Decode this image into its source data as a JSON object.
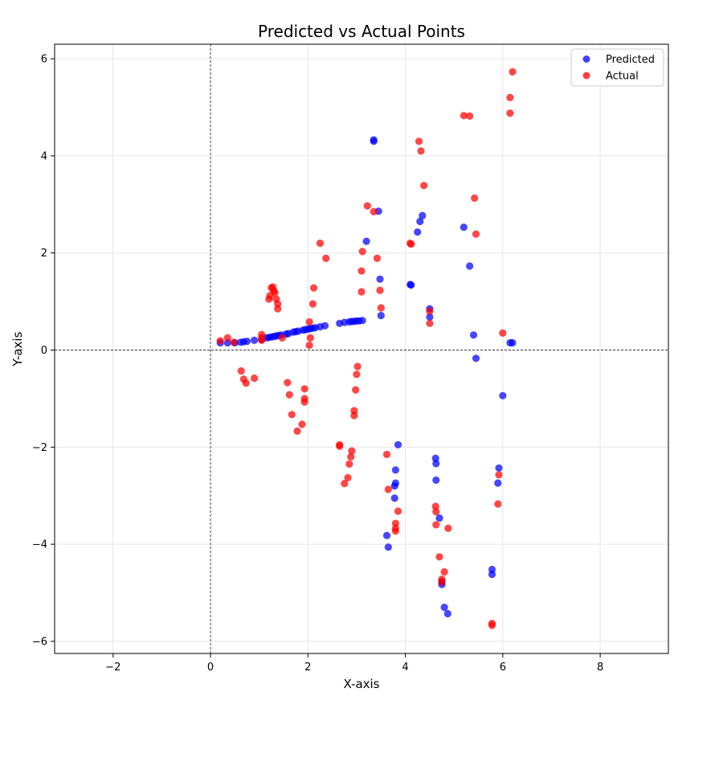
{
  "chart_data": {
    "type": "scatter",
    "title": "Predicted vs Actual Points",
    "xlabel": "X-axis",
    "ylabel": "Y-axis",
    "xlim": [
      -3.2,
      9.4
    ],
    "ylim": [
      -6.25,
      6.3
    ],
    "xticks": [
      -2,
      0,
      2,
      4,
      6,
      8
    ],
    "yticks": [
      -6,
      -4,
      -2,
      0,
      2,
      4,
      6
    ],
    "xtick_labels": [
      "−2",
      "0",
      "2",
      "4",
      "6",
      "8"
    ],
    "ytick_labels": [
      "−6",
      "−4",
      "−2",
      "0",
      "2",
      "4",
      "6"
    ],
    "grid": true,
    "reference_lines": {
      "x": 0,
      "y": 0,
      "style": "dashed"
    },
    "legend_position": "top-right",
    "series": [
      {
        "name": "Predicted",
        "color": "#0000ff",
        "points": [
          [
            0.2,
            0.15
          ],
          [
            0.35,
            0.15
          ],
          [
            0.5,
            0.15
          ],
          [
            0.62,
            0.16
          ],
          [
            0.68,
            0.17
          ],
          [
            0.75,
            0.18
          ],
          [
            0.9,
            0.2
          ],
          [
            1.05,
            0.22
          ],
          [
            1.15,
            0.25
          ],
          [
            1.2,
            0.26
          ],
          [
            1.25,
            0.27
          ],
          [
            1.3,
            0.28
          ],
          [
            1.35,
            0.29
          ],
          [
            1.4,
            0.3
          ],
          [
            1.45,
            0.31
          ],
          [
            1.55,
            0.33
          ],
          [
            1.6,
            0.34
          ],
          [
            1.7,
            0.37
          ],
          [
            1.75,
            0.38
          ],
          [
            1.8,
            0.39
          ],
          [
            1.9,
            0.41
          ],
          [
            1.95,
            0.42
          ],
          [
            2.0,
            0.43
          ],
          [
            2.05,
            0.44
          ],
          [
            2.1,
            0.45
          ],
          [
            2.15,
            0.46
          ],
          [
            2.25,
            0.48
          ],
          [
            2.35,
            0.5
          ],
          [
            2.65,
            0.55
          ],
          [
            2.75,
            0.57
          ],
          [
            2.85,
            0.58
          ],
          [
            2.9,
            0.59
          ],
          [
            2.95,
            0.59
          ],
          [
            3.0,
            0.6
          ],
          [
            3.05,
            0.6
          ],
          [
            3.12,
            0.61
          ],
          [
            3.2,
            2.24
          ],
          [
            3.35,
            4.3
          ],
          [
            3.35,
            4.33
          ],
          [
            3.45,
            2.86
          ],
          [
            3.48,
            1.46
          ],
          [
            3.5,
            0.71
          ],
          [
            4.1,
            1.35
          ],
          [
            4.12,
            1.34
          ],
          [
            4.25,
            2.43
          ],
          [
            4.3,
            2.65
          ],
          [
            4.35,
            2.77
          ],
          [
            4.5,
            0.85
          ],
          [
            4.5,
            0.68
          ],
          [
            5.2,
            2.53
          ],
          [
            5.32,
            1.73
          ],
          [
            5.4,
            0.31
          ],
          [
            5.45,
            -0.17
          ],
          [
            6.0,
            -0.94
          ],
          [
            6.15,
            0.15
          ],
          [
            6.2,
            0.15
          ],
          [
            3.85,
            -1.95
          ],
          [
            3.8,
            -2.47
          ],
          [
            3.8,
            -2.74
          ],
          [
            3.78,
            -2.8
          ],
          [
            3.78,
            -3.05
          ],
          [
            3.62,
            -3.82
          ],
          [
            3.65,
            -4.06
          ],
          [
            4.62,
            -2.23
          ],
          [
            4.63,
            -2.34
          ],
          [
            4.63,
            -2.68
          ],
          [
            4.7,
            -3.46
          ],
          [
            4.75,
            -4.77
          ],
          [
            4.75,
            -4.83
          ],
          [
            4.8,
            -5.3
          ],
          [
            4.87,
            -5.43
          ],
          [
            5.92,
            -2.43
          ],
          [
            5.9,
            -2.74
          ],
          [
            5.78,
            -4.52
          ],
          [
            5.78,
            -4.62
          ]
        ]
      },
      {
        "name": "Actual",
        "color": "#ff0000",
        "points": [
          [
            0.2,
            0.19
          ],
          [
            0.35,
            0.25
          ],
          [
            0.48,
            0.16
          ],
          [
            1.05,
            0.32
          ],
          [
            1.05,
            0.25
          ],
          [
            1.05,
            0.2
          ],
          [
            1.47,
            0.25
          ],
          [
            1.2,
            1.05
          ],
          [
            1.22,
            1.12
          ],
          [
            1.25,
            1.28
          ],
          [
            1.28,
            1.3
          ],
          [
            1.3,
            1.22
          ],
          [
            1.32,
            1.18
          ],
          [
            1.35,
            1.05
          ],
          [
            1.38,
            0.95
          ],
          [
            1.38,
            0.85
          ],
          [
            2.03,
            0.58
          ],
          [
            2.05,
            0.25
          ],
          [
            2.03,
            0.1
          ],
          [
            2.1,
            0.95
          ],
          [
            2.12,
            1.28
          ],
          [
            2.25,
            2.2
          ],
          [
            2.37,
            1.89
          ],
          [
            3.1,
            1.63
          ],
          [
            3.1,
            1.2
          ],
          [
            3.12,
            2.03
          ],
          [
            3.22,
            2.97
          ],
          [
            3.35,
            2.85
          ],
          [
            3.42,
            1.89
          ],
          [
            3.48,
            1.23
          ],
          [
            3.5,
            0.87
          ],
          [
            4.1,
            2.2
          ],
          [
            4.12,
            2.18
          ],
          [
            4.28,
            4.3
          ],
          [
            4.32,
            4.1
          ],
          [
            4.38,
            3.39
          ],
          [
            4.5,
            0.8
          ],
          [
            4.5,
            0.55
          ],
          [
            5.2,
            4.83
          ],
          [
            5.32,
            4.82
          ],
          [
            5.42,
            3.13
          ],
          [
            5.45,
            2.39
          ],
          [
            6.0,
            0.35
          ],
          [
            6.15,
            5.2
          ],
          [
            6.15,
            4.88
          ],
          [
            6.2,
            5.73
          ],
          [
            0.63,
            -0.43
          ],
          [
            0.68,
            -0.6
          ],
          [
            0.73,
            -0.68
          ],
          [
            0.9,
            -0.58
          ],
          [
            1.58,
            -0.67
          ],
          [
            1.62,
            -0.92
          ],
          [
            1.67,
            -1.33
          ],
          [
            1.78,
            -1.67
          ],
          [
            1.88,
            -1.53
          ],
          [
            1.93,
            -0.8
          ],
          [
            1.93,
            -1.0
          ],
          [
            1.93,
            -1.07
          ],
          [
            2.65,
            -1.95
          ],
          [
            2.65,
            -1.98
          ],
          [
            2.75,
            -2.75
          ],
          [
            2.82,
            -2.63
          ],
          [
            2.85,
            -2.35
          ],
          [
            2.88,
            -2.2
          ],
          [
            2.9,
            -2.08
          ],
          [
            2.95,
            -1.25
          ],
          [
            2.95,
            -1.35
          ],
          [
            2.98,
            -0.82
          ],
          [
            3.0,
            -0.5
          ],
          [
            3.02,
            -0.34
          ],
          [
            3.62,
            -2.15
          ],
          [
            3.65,
            -2.87
          ],
          [
            3.8,
            -3.57
          ],
          [
            3.8,
            -3.67
          ],
          [
            3.8,
            -3.73
          ],
          [
            3.85,
            -3.32
          ],
          [
            4.62,
            -3.22
          ],
          [
            4.63,
            -3.33
          ],
          [
            4.63,
            -3.6
          ],
          [
            4.7,
            -4.26
          ],
          [
            4.75,
            -4.72
          ],
          [
            4.75,
            -4.78
          ],
          [
            4.8,
            -4.57
          ],
          [
            4.88,
            -3.67
          ],
          [
            5.78,
            -5.63
          ],
          [
            5.78,
            -5.67
          ],
          [
            5.92,
            -2.57
          ],
          [
            5.9,
            -3.17
          ]
        ]
      }
    ]
  }
}
